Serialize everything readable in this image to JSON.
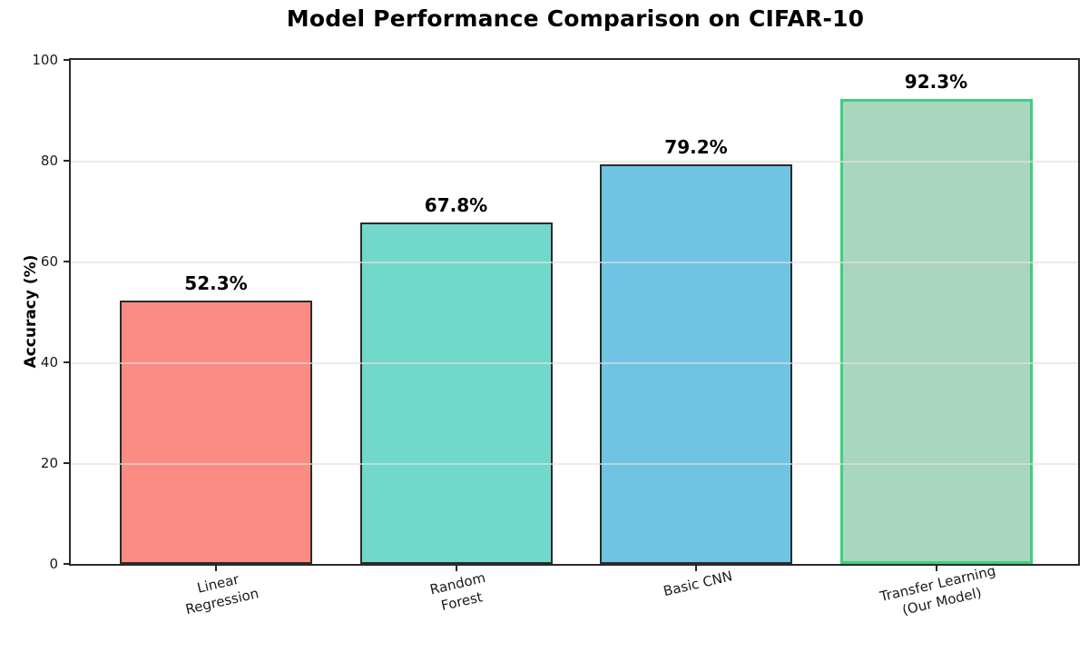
{
  "figure": {
    "background": "#ffffff",
    "spine_color": "#2a2a2a",
    "grid_color": "#e6e6e6",
    "text_color": "#000000"
  },
  "chart_data": {
    "type": "bar",
    "title": "Model Performance Comparison on CIFAR-10",
    "xlabel": "",
    "ylabel": "Accuracy (%)",
    "categories": [
      "Linear\nRegression",
      "Random\nForest",
      "Basic CNN",
      "Transfer Learning\n(Our Model)"
    ],
    "values": [
      52.3,
      67.8,
      79.2,
      92.3
    ],
    "value_labels": [
      "52.3%",
      "67.8%",
      "79.2%",
      "92.3%"
    ],
    "ylim": [
      0,
      100
    ],
    "yticks": [
      0,
      20,
      40,
      60,
      80,
      100
    ],
    "grid": {
      "axis": "y",
      "on": true,
      "lines_at": [
        20,
        40,
        60,
        80
      ]
    },
    "legend": "none",
    "bars": [
      {
        "label": "Linear\nRegression",
        "value": 52.3,
        "fill": "#fb8b83",
        "edge": "#2b2b2b",
        "edge_width": 2
      },
      {
        "label": "Random\nForest",
        "value": 67.8,
        "fill": "#72d8cb",
        "edge": "#2b2b2b",
        "edge_width": 2
      },
      {
        "label": "Basic CNN",
        "value": 79.2,
        "fill": "#6ec4e2",
        "edge": "#2b2b2b",
        "edge_width": 2
      },
      {
        "label": "Transfer Learning\n(Our Model)",
        "value": 92.3,
        "fill": "#a9d6be",
        "edge": "#3fce7f",
        "edge_width": 3.5
      }
    ],
    "highlight_index": 3
  }
}
